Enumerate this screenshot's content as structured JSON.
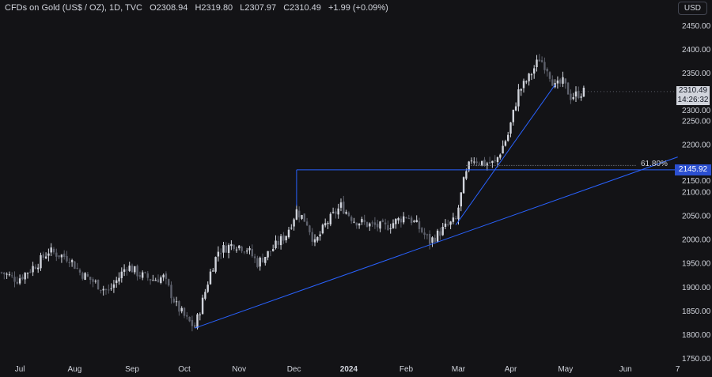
{
  "header": {
    "symbol": "CFDs on Gold (US$ / OZ), 1D, TVC",
    "open": "O2308.94",
    "high": "H2319.80",
    "low": "L2307.97",
    "close": "C2310.49",
    "change": "+1.99 (+0.09%)"
  },
  "currency_button": "USD",
  "last_price_label": {
    "price": "2310.49",
    "countdown": "14:26:32"
  },
  "level_label": "2145.92",
  "fib_label": "61.80%",
  "colors": {
    "up": "#d1d4dc",
    "down": "#5d606b",
    "line": "#2962ff",
    "bg": "#131316",
    "label_blue": "#2b4fd0"
  },
  "chart_data": {
    "type": "candlestick",
    "title": "CFDs on Gold (US$ / OZ), 1D",
    "ylim": [
      1750,
      2450
    ],
    "y_ticks": [
      "2450.00",
      "2400.00",
      "2350.00",
      "2300.00",
      "2250.00",
      "2200.00",
      "2150.00",
      "2100.00",
      "2050.00",
      "2000.00",
      "1950.00",
      "1900.00",
      "1850.00",
      "1800.00",
      "1750.00"
    ],
    "x_ticks": [
      {
        "label": "Jul",
        "day": 7
      },
      {
        "label": "Aug",
        "day": 28
      },
      {
        "label": "Sep",
        "day": 50
      },
      {
        "label": "Oct",
        "day": 70
      },
      {
        "label": "Nov",
        "day": 91
      },
      {
        "label": "Dec",
        "day": 112
      },
      {
        "label": "2024",
        "day": 133
      },
      {
        "label": "Feb",
        "day": 155
      },
      {
        "label": "Mar",
        "day": 175
      },
      {
        "label": "Apr",
        "day": 195
      },
      {
        "label": "May",
        "day": 216
      },
      {
        "label": "Jun",
        "day": 239
      },
      {
        "label": "7",
        "day": 259
      }
    ],
    "close_anchors": [
      [
        0,
        1930
      ],
      [
        6,
        1915
      ],
      [
        14,
        1950
      ],
      [
        18,
        1975
      ],
      [
        26,
        1960
      ],
      [
        30,
        1930
      ],
      [
        38,
        1900
      ],
      [
        41,
        1890
      ],
      [
        45,
        1920
      ],
      [
        48,
        1945
      ],
      [
        53,
        1925
      ],
      [
        58,
        1915
      ],
      [
        62,
        1920
      ],
      [
        67,
        1860
      ],
      [
        71,
        1830
      ],
      [
        74,
        1815
      ],
      [
        77,
        1870
      ],
      [
        80,
        1930
      ],
      [
        83,
        1975
      ],
      [
        89,
        1990
      ],
      [
        94,
        1980
      ],
      [
        98,
        1950
      ],
      [
        103,
        1975
      ],
      [
        109,
        2010
      ],
      [
        113,
        2060
      ],
      [
        117,
        2035
      ],
      [
        120,
        1990
      ],
      [
        124,
        2030
      ],
      [
        130,
        2070
      ],
      [
        135,
        2040
      ],
      [
        141,
        2030
      ],
      [
        147,
        2025
      ],
      [
        155,
        2050
      ],
      [
        159,
        2030
      ],
      [
        164,
        1995
      ],
      [
        170,
        2025
      ],
      [
        174,
        2040
      ],
      [
        177,
        2120
      ],
      [
        180,
        2170
      ],
      [
        185,
        2160
      ],
      [
        189,
        2160
      ],
      [
        194,
        2220
      ],
      [
        198,
        2310
      ],
      [
        202,
        2340
      ],
      [
        206,
        2380
      ],
      [
        209,
        2360
      ],
      [
        212,
        2320
      ],
      [
        215,
        2330
      ],
      [
        218,
        2300
      ],
      [
        223,
        2310
      ]
    ],
    "annotations": {
      "horizontal_level": 2145.92,
      "fib_level_pct": "61.80%",
      "fib_price": 2155,
      "trendlines": [
        [
          [
            74,
            1813
          ],
          [
            259,
            2173
          ]
        ],
        [
          [
            174,
            2030
          ],
          [
            212,
            2325
          ]
        ]
      ],
      "box_start": {
        "day": 113,
        "price_top": 2145.92,
        "price_bottom": 2070
      }
    }
  }
}
